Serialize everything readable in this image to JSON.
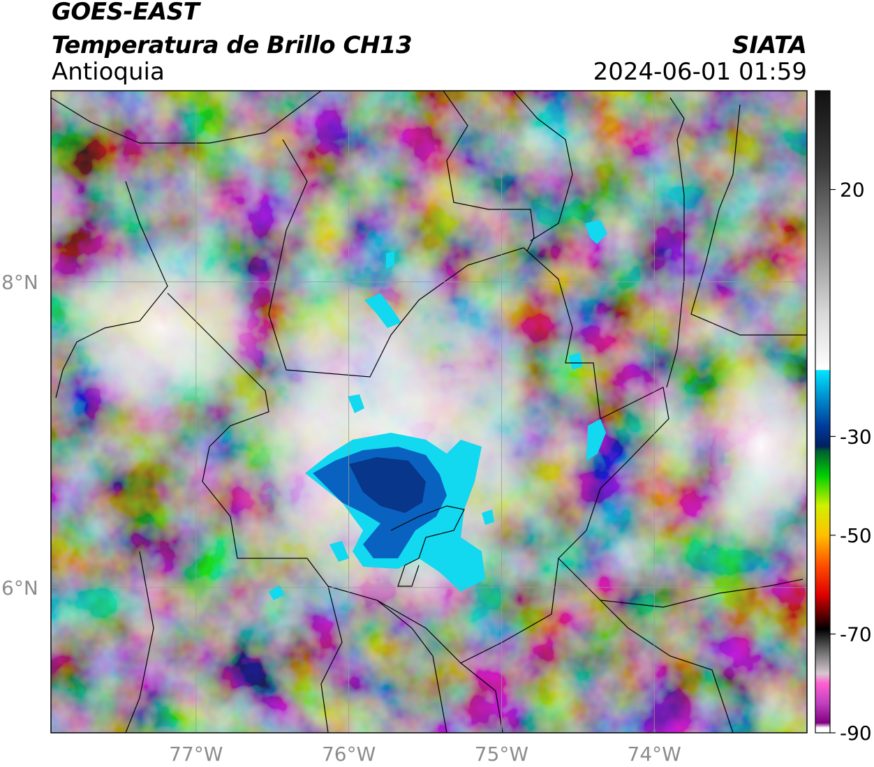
{
  "header": {
    "satellite": "GOES-EAST",
    "product": "Temperatura de Brillo CH13",
    "region": "Antioquia",
    "organization": "SIATA",
    "datetime": "2024-06-01 01:59"
  },
  "map": {
    "lon_range": [
      -77.95,
      -73.0
    ],
    "lat_range": [
      5.05,
      9.25
    ],
    "lon_ticks": [
      {
        "value": -77,
        "label": "77°W"
      },
      {
        "value": -76,
        "label": "76°W"
      },
      {
        "value": -75,
        "label": "75°W"
      },
      {
        "value": -74,
        "label": "74°W"
      }
    ],
    "lat_ticks": [
      {
        "value": 8,
        "label": "8°N"
      },
      {
        "value": 6,
        "label": "6°N"
      }
    ],
    "gridlines": true
  },
  "colorbar": {
    "range": [
      -90,
      40
    ],
    "ticks": [
      {
        "value": 20,
        "label": "20"
      },
      {
        "value": -30,
        "label": "-30"
      },
      {
        "value": -50,
        "label": "-50"
      },
      {
        "value": -70,
        "label": "-70"
      },
      {
        "value": -90,
        "label": "-90"
      }
    ],
    "stops": [
      {
        "value": 40,
        "color": "#111111"
      },
      {
        "value": 25,
        "color": "#3a3a3a"
      },
      {
        "value": 10,
        "color": "#888888"
      },
      {
        "value": -5,
        "color": "#d8d8d8"
      },
      {
        "value": -16.5,
        "color": "#ffffff"
      },
      {
        "value": -16.6,
        "color": "#00e5ff"
      },
      {
        "value": -22,
        "color": "#0090d0"
      },
      {
        "value": -28,
        "color": "#003a9a"
      },
      {
        "value": -32,
        "color": "#002060"
      },
      {
        "value": -33,
        "color": "#006030"
      },
      {
        "value": -38,
        "color": "#00d000"
      },
      {
        "value": -44,
        "color": "#d0f000"
      },
      {
        "value": -50,
        "color": "#ffc000"
      },
      {
        "value": -56,
        "color": "#ff5000"
      },
      {
        "value": -62,
        "color": "#e00000"
      },
      {
        "value": -66,
        "color": "#600000"
      },
      {
        "value": -69,
        "color": "#000000"
      },
      {
        "value": -74,
        "color": "#777777"
      },
      {
        "value": -78,
        "color": "#d8c8d0"
      },
      {
        "value": -80,
        "color": "#ff60d0"
      },
      {
        "value": -84,
        "color": "#c040c0"
      },
      {
        "value": -88,
        "color": "#800080"
      },
      {
        "value": -89,
        "color": "#ffffff"
      }
    ]
  }
}
